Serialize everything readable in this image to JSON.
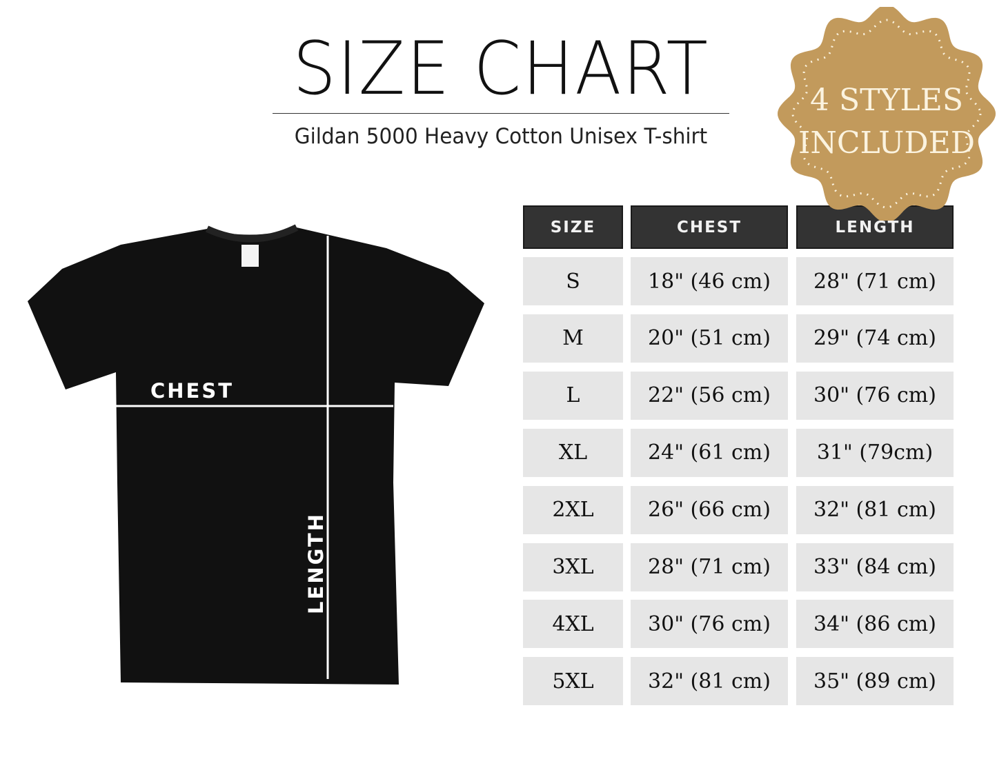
{
  "header": {
    "title": "SIZE CHART",
    "subtitle": "Gildan 5000 Heavy Cotton Unisex T-shirt"
  },
  "badge": {
    "line1": "4 STYLES",
    "line2": "INCLUDED",
    "color": "#c29a5c"
  },
  "diagram": {
    "chest_label": "CHEST",
    "length_label": "LENGTH",
    "shirt_color": "#111111"
  },
  "table": {
    "headers": [
      "SIZE",
      "CHEST",
      "LENGTH"
    ],
    "rows": [
      [
        "S",
        "18\" (46 cm)",
        "28\" (71 cm)"
      ],
      [
        "M",
        "20\" (51 cm)",
        "29\" (74 cm)"
      ],
      [
        "L",
        "22\" (56 cm)",
        "30\" (76 cm)"
      ],
      [
        "XL",
        "24\" (61 cm)",
        "31\" (79cm)"
      ],
      [
        "2XL",
        "26\" (66 cm)",
        "32\" (81 cm)"
      ],
      [
        "3XL",
        "28\" (71 cm)",
        "33\" (84 cm)"
      ],
      [
        "4XL",
        "30\" (76 cm)",
        "34\" (86 cm)"
      ],
      [
        "5XL",
        "32\" (81 cm)",
        "35\" (89 cm)"
      ]
    ]
  }
}
